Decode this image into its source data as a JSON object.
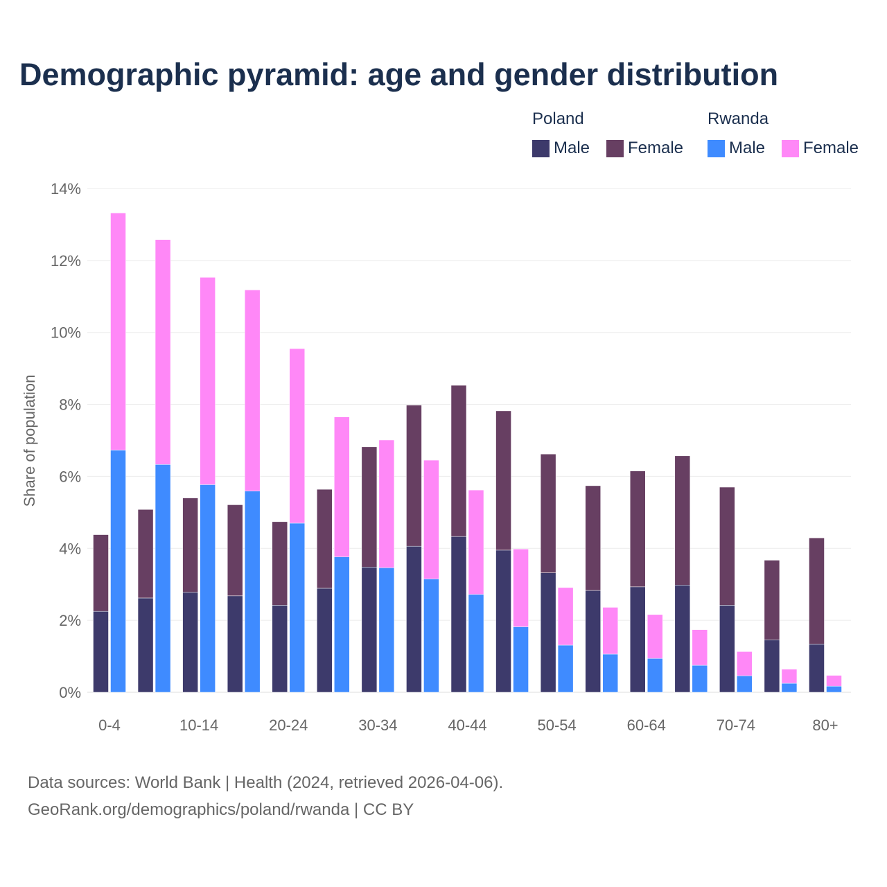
{
  "chart_data": {
    "type": "bar",
    "title": "Demographic pyramid: age and gender distribution",
    "ylabel": "Share of population",
    "xlabel": "",
    "ylim": [
      0,
      14
    ],
    "yticks": [
      "0%",
      "2%",
      "4%",
      "6%",
      "8%",
      "10%",
      "12%",
      "14%"
    ],
    "grid": true,
    "legend_placement": "top-right",
    "stacked": true,
    "categories": [
      "0-4",
      "5-9",
      "10-14",
      "15-19",
      "20-24",
      "25-29",
      "30-34",
      "35-39",
      "40-44",
      "45-49",
      "50-54",
      "55-59",
      "60-64",
      "65-69",
      "70-74",
      "75-79",
      "80+"
    ],
    "xtick_labels": [
      "0-4",
      "10-14",
      "20-24",
      "30-34",
      "40-44",
      "50-54",
      "60-64",
      "70-74",
      "80+"
    ],
    "groups": [
      {
        "name": "Poland",
        "series": [
          {
            "name": "Male",
            "color": "#3d3a6b",
            "values": [
              2.25,
              2.62,
              2.78,
              2.68,
              2.42,
              2.89,
              3.48,
              4.06,
              4.33,
              3.95,
              3.32,
              2.83,
              2.93,
              2.98,
              2.42,
              1.46,
              1.34
            ]
          },
          {
            "name": "Female",
            "color": "#673f62",
            "values": [
              2.13,
              2.46,
              2.62,
              2.53,
              2.32,
              2.75,
              3.34,
              3.92,
              4.2,
              3.87,
              3.3,
              2.91,
              3.22,
              3.59,
              3.28,
              2.21,
              2.95
            ]
          }
        ]
      },
      {
        "name": "Rwanda",
        "series": [
          {
            "name": "Male",
            "color": "#3f8bff",
            "values": [
              6.73,
              6.33,
              5.77,
              5.59,
              4.7,
              3.76,
              3.46,
              3.15,
              2.72,
              1.82,
              1.31,
              1.06,
              0.94,
              0.75,
              0.46,
              0.25,
              0.17
            ]
          },
          {
            "name": "Female",
            "color": "#ff88f7",
            "values": [
              6.59,
              6.25,
              5.76,
              5.59,
              4.85,
              3.89,
              3.55,
              3.3,
              2.9,
              2.16,
              1.6,
              1.3,
              1.22,
              0.99,
              0.67,
              0.39,
              0.3
            ]
          }
        ]
      }
    ]
  },
  "source_line1": "Data sources: World Bank | Health (2024, retrieved 2026-04-06).",
  "source_line2": "GeoRank.org/demographics/poland/rwanda | CC BY"
}
